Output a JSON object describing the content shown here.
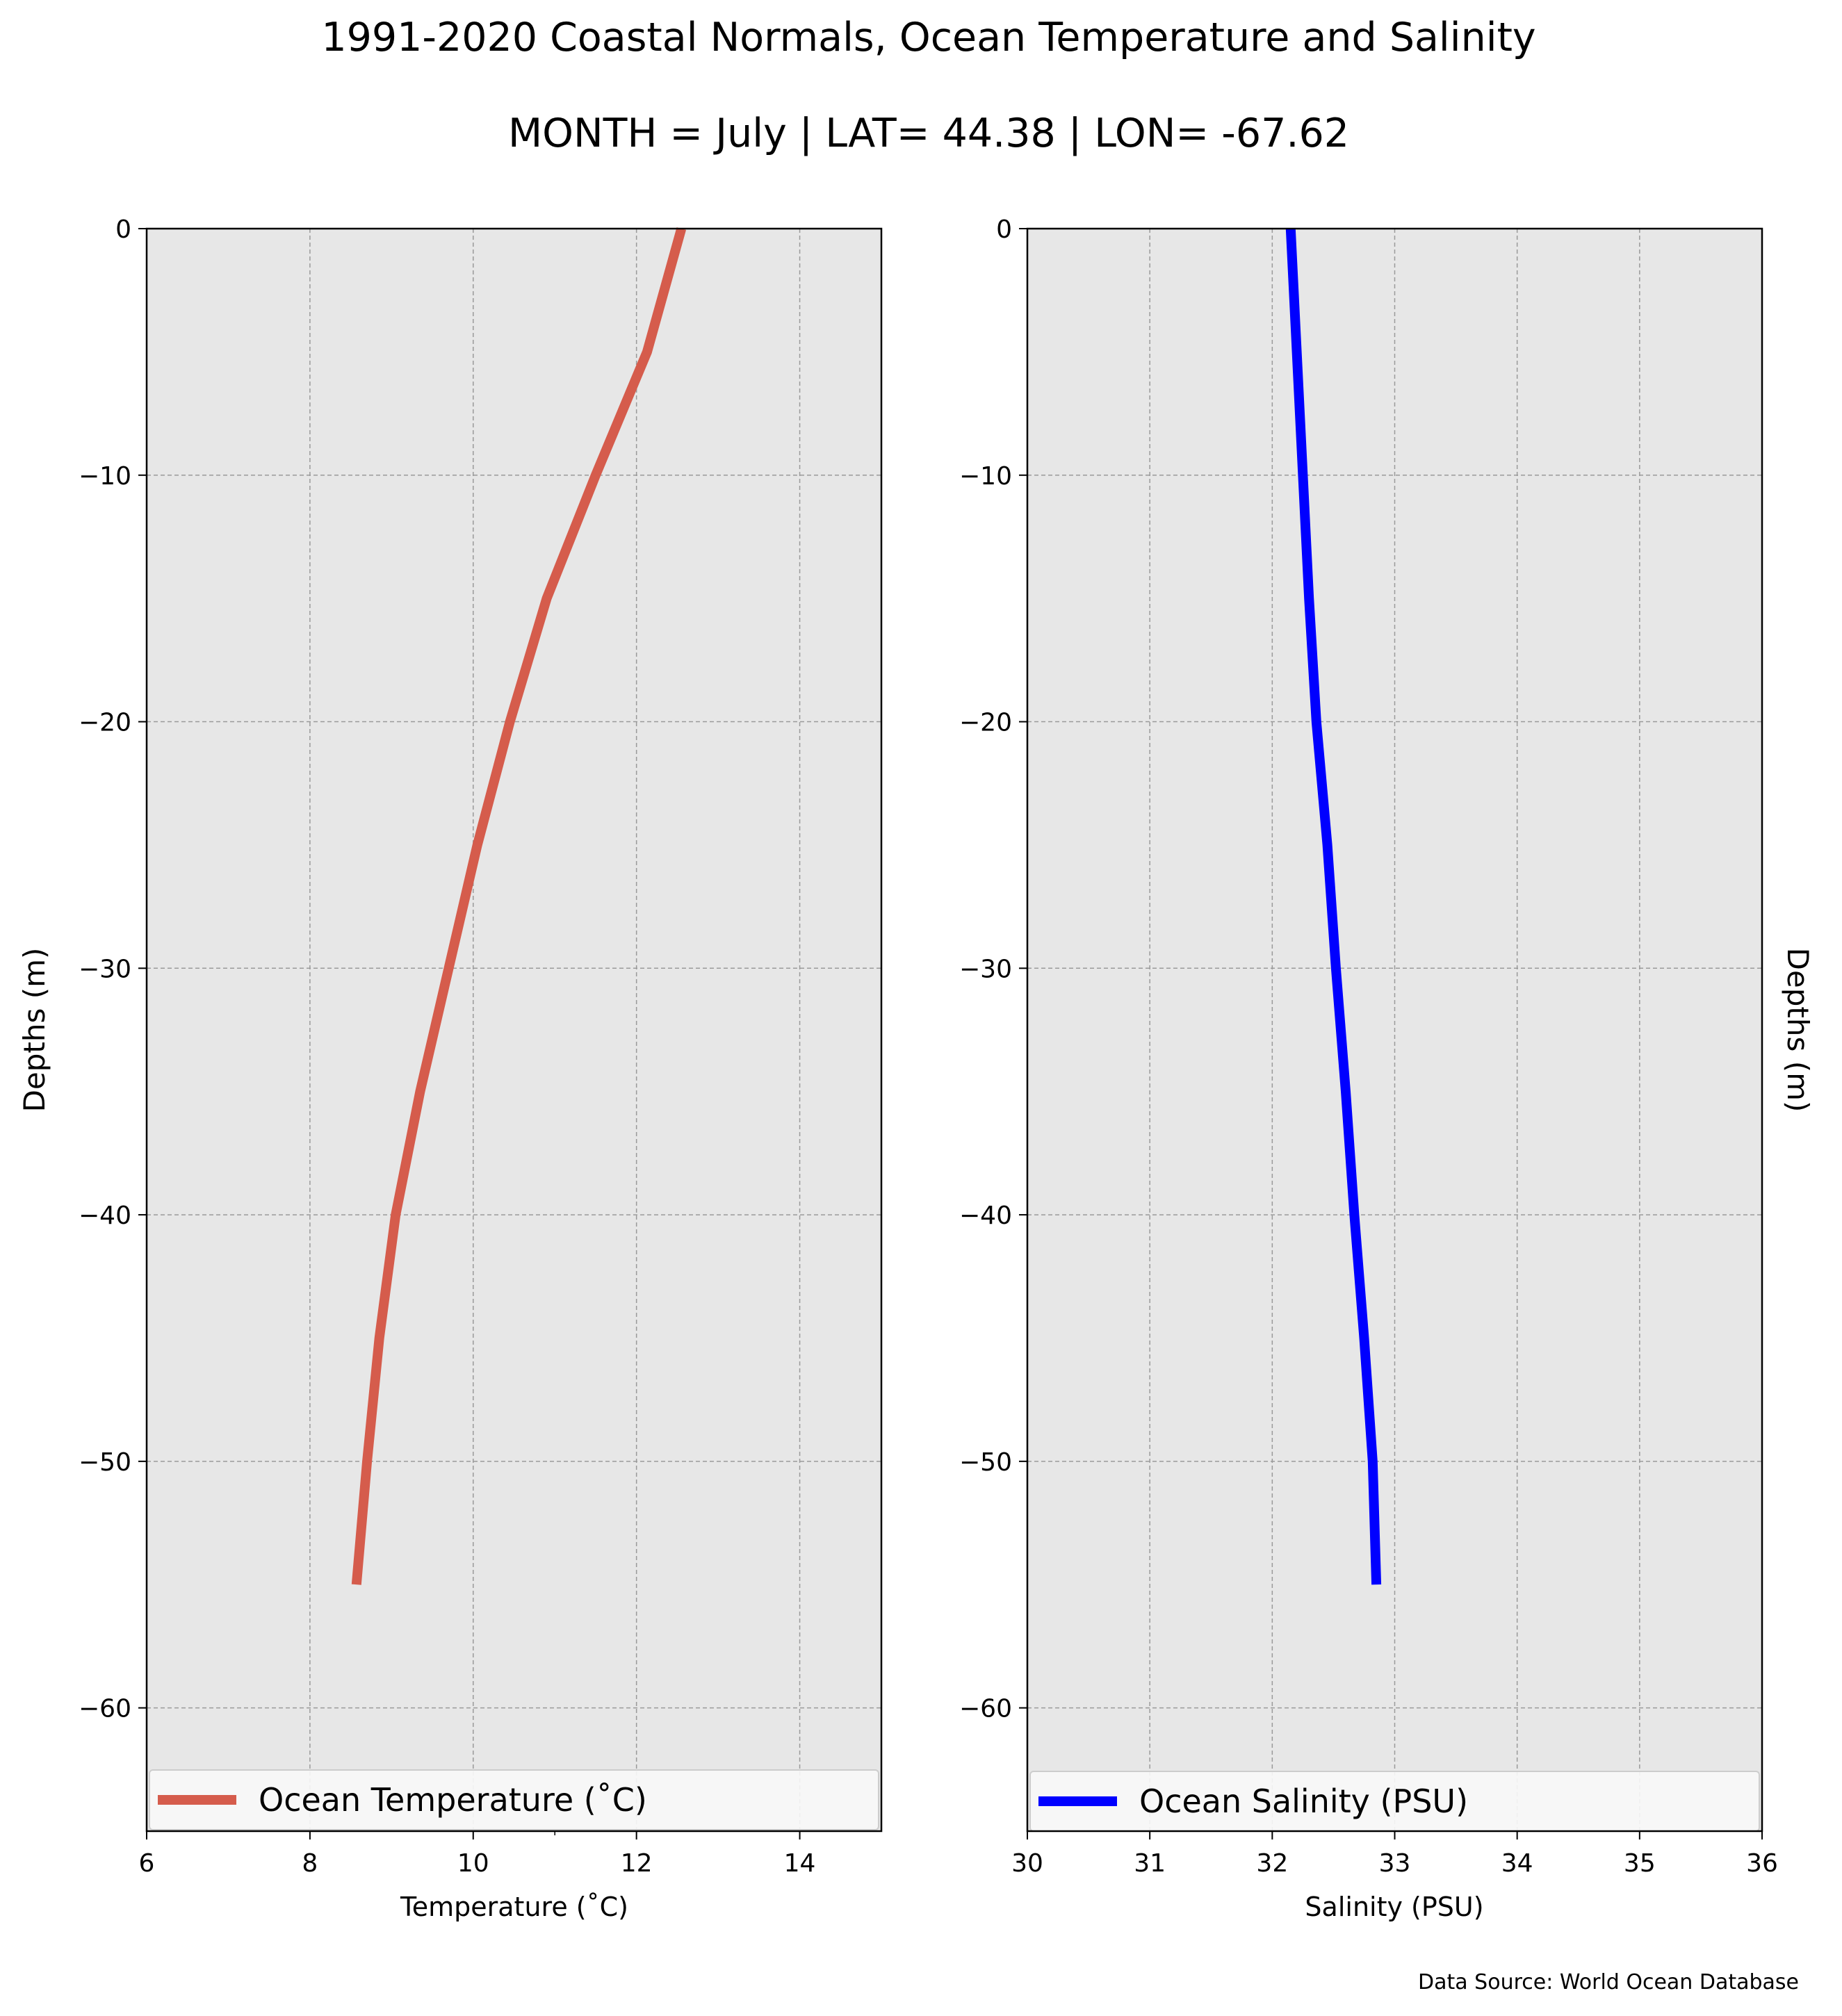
{
  "title": "1991-2020 Coastal Normals, Ocean Temperature and Salinity",
  "subtitle": "MONTH = July | LAT= 44.38 | LON= -67.62",
  "source": "Data Source: World Ocean Database",
  "colors": {
    "temperature": "#d55c4c",
    "salinity": "#0000ff",
    "plot_background": "#e7e7e7",
    "grid": "#9a9a9a"
  },
  "chart_data": [
    {
      "type": "line",
      "xlabel": "Temperature ($^\\circ$C)",
      "xlabel_display": "Temperature (˚C)",
      "ylabel": "Depths (m)",
      "xlim": [
        6,
        15
      ],
      "ylim": [
        -65,
        0
      ],
      "xticks": [
        "6",
        "8",
        "10",
        "12",
        "14"
      ],
      "yticks": [
        "0",
        "−10",
        "−20",
        "−30",
        "−40",
        "−50",
        "−60"
      ],
      "grid": true,
      "legend_placement": "lower center",
      "series": [
        {
          "name": "Ocean Temperature (˚C)",
          "x": [
            12.55,
            12.13,
            11.5,
            10.9,
            10.45,
            10.05,
            9.7,
            9.35,
            9.05,
            8.85,
            8.7,
            8.57
          ],
          "y": [
            0,
            -5,
            -10,
            -15,
            -20,
            -25,
            -30,
            -35,
            -40,
            -45,
            -50,
            -55
          ]
        }
      ]
    },
    {
      "type": "line",
      "xlabel": "Salinity (PSU)",
      "ylabel": "Depths (m)",
      "xlim": [
        30,
        36
      ],
      "ylim": [
        -65,
        0
      ],
      "xticks": [
        "30",
        "31",
        "32",
        "33",
        "34",
        "35",
        "36"
      ],
      "yticks": [
        "0",
        "−10",
        "−20",
        "−30",
        "−40",
        "−50",
        "−60"
      ],
      "grid": true,
      "legend_placement": "lower center",
      "series": [
        {
          "name": "Ocean Salinity (PSU)",
          "x": [
            32.15,
            32.2,
            32.25,
            32.3,
            32.36,
            32.45,
            32.52,
            32.6,
            32.67,
            32.75,
            32.82,
            32.85
          ],
          "y": [
            0,
            -5,
            -10,
            -15,
            -20,
            -25,
            -30,
            -35,
            -40,
            -45,
            -50,
            -55
          ]
        }
      ]
    }
  ]
}
